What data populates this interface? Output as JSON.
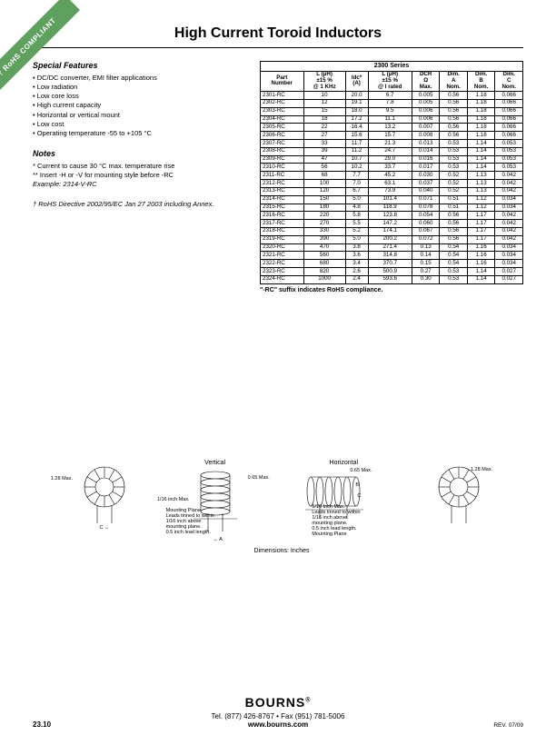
{
  "ribbon": "† RoHS COMPLIANT",
  "title": "High Current Toroid Inductors",
  "features": {
    "heading": "Special Features",
    "items": [
      "DC/DC converter, EMI filter applications",
      "Low radiation",
      "Low core loss",
      "High current capacity",
      "Horizontal or vertical mount",
      "Low cost",
      "Operating temperature -55 to +105 °C"
    ]
  },
  "notes": {
    "heading": "Notes",
    "lines": [
      "* Current to cause 30 °C max. temperature rise",
      "** Insert -H or -V for mounting style before -RC"
    ],
    "example_label": "Example: ",
    "example_value": "2314-V-RC"
  },
  "annex": "† RoHS Directive 2002/95/EC Jan 27 2003 including Annex.",
  "table": {
    "series": "2300 Series",
    "headers": [
      [
        "Part",
        "Number"
      ],
      [
        "L (μH)",
        "±15 %",
        "@ 1 KHz"
      ],
      [
        "Idc*",
        "(A)"
      ],
      [
        "L (μH)",
        "±15 %",
        "@ I rated"
      ],
      [
        "DCR",
        "Ω",
        "Max."
      ],
      [
        "Dim.",
        "A",
        "Nom."
      ],
      [
        "Dim.",
        "B",
        "Nom."
      ],
      [
        "Dim.",
        "C",
        "Nom."
      ]
    ],
    "rows": [
      [
        "2301-RC",
        "10",
        "20.0",
        "6.7",
        "0.005",
        "0.56",
        "1.18",
        "0.066"
      ],
      [
        "2302-RC",
        "12",
        "19.1",
        "7.8",
        "0.005",
        "0.56",
        "1.18",
        "0.066"
      ],
      [
        "2303-RC",
        "15",
        "18.0",
        "9.5",
        "0.006",
        "0.56",
        "1.18",
        "0.066"
      ],
      [
        "2304-RC",
        "18",
        "17.2",
        "11.1",
        "0.006",
        "0.56",
        "1.18",
        "0.066"
      ],
      [
        "2305-RC",
        "22",
        "16.4",
        "13.2",
        "0.007",
        "0.56",
        "1.18",
        "0.066"
      ],
      [
        "2306-RC",
        "27",
        "15.6",
        "15.7",
        "0.008",
        "0.56",
        "1.18",
        "0.066"
      ],
      [
        "2307-RC",
        "33",
        "11.7",
        "21.3",
        "0.013",
        "0.53",
        "1.14",
        "0.053"
      ],
      [
        "2308-RC",
        "39",
        "11.2",
        "24.7",
        "0.014",
        "0.53",
        "1.14",
        "0.053"
      ],
      [
        "2309-RC",
        "47",
        "10.7",
        "29.0",
        "0.016",
        "0.53",
        "1.14",
        "0.053"
      ],
      [
        "2310-RC",
        "56",
        "10.2",
        "33.7",
        "0.017",
        "0.53",
        "1.14",
        "0.053"
      ],
      [
        "2311-RC",
        "68",
        "7.7",
        "45.2",
        "0.030",
        "0.52",
        "1.13",
        "0.042"
      ],
      [
        "2312-RC",
        "100",
        "7.0",
        "63.1",
        "0.037",
        "0.52",
        "1.13",
        "0.042"
      ],
      [
        "2313-RC",
        "120",
        "6.7",
        "73.9",
        "0.040",
        "0.52",
        "1.13",
        "0.042"
      ],
      [
        "2314-RC",
        "150",
        "5.0",
        "101.4",
        "0.071",
        "0.51",
        "1.12",
        "0.034"
      ],
      [
        "2315-RC",
        "180",
        "4.8",
        "118.9",
        "0.078",
        "0.51",
        "1.12",
        "0.034"
      ],
      [
        "2316-RC",
        "220",
        "5.8",
        "123.8",
        "0.054",
        "0.56",
        "1.17",
        "0.042"
      ],
      [
        "2317-RC",
        "270",
        "5.5",
        "147.2",
        "0.060",
        "0.56",
        "1.17",
        "0.042"
      ],
      [
        "2318-RC",
        "330",
        "5.2",
        "174.1",
        "0.067",
        "0.56",
        "1.17",
        "0.042"
      ],
      [
        "2319-RC",
        "390",
        "5.0",
        "200.2",
        "0.072",
        "0.56",
        "1.17",
        "0.042"
      ],
      [
        "2320-RC",
        "470",
        "3.8",
        "271.4",
        "0.13",
        "0.54",
        "1.16",
        "0.034"
      ],
      [
        "2321-RC",
        "560",
        "3.6",
        "314.8",
        "0.14",
        "0.54",
        "1.16",
        "0.034"
      ],
      [
        "2322-RC",
        "680",
        "3.4",
        "370.7",
        "0.15",
        "0.54",
        "1.16",
        "0.034"
      ],
      [
        "2323-RC",
        "820",
        "2.6",
        "500.9",
        "0.27",
        "0.53",
        "1.14",
        "0.027"
      ],
      [
        "2324-RC",
        "1000",
        "2.4",
        "593.6",
        "0.30",
        "0.53",
        "1.14",
        "0.027"
      ]
    ],
    "note": "\"-RC\" suffix indicates RoHS compliance."
  },
  "diagrams": {
    "vertical": "Vertical",
    "horizontal": "Horizontal",
    "dim128": "1.28\nMax.",
    "dim065": "0.65\nMax.",
    "dim116": "1/16 inch\nMax.",
    "dim116b": "1/16 Inch Max.",
    "mp": "Mounting Plane",
    "leads": "Leads tinned to within\n1/16 inch above\nmounting plane.\n0.5 inch lead length.",
    "dimA": "A",
    "dimB": "B",
    "dimC": "C",
    "caption": "Dimensions:  Inches"
  },
  "footer": {
    "logo": "BOURNS",
    "contact": "Tel. (877) 426-8767 • Fax (951) 781-5006",
    "url": "www.bourns.com",
    "page": "23.10",
    "rev": "REV. 07/09"
  }
}
